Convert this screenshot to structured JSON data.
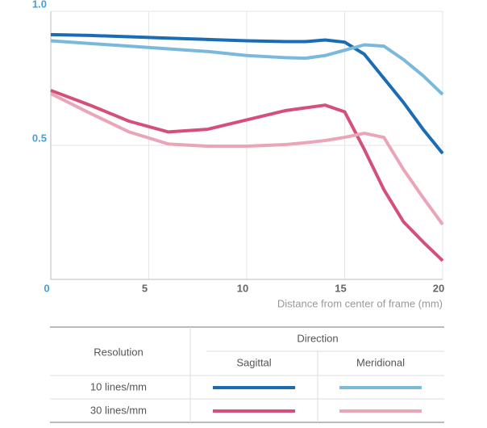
{
  "chart_data": {
    "type": "line",
    "x": [
      0,
      2,
      4,
      6,
      8,
      10,
      12,
      13,
      14,
      15,
      16,
      17,
      18,
      19,
      20
    ],
    "series": [
      {
        "color": "#1a6db5",
        "values": [
          0.913,
          0.91,
          0.905,
          0.9,
          0.895,
          0.89,
          0.887,
          0.887,
          0.893,
          0.885,
          0.84,
          0.75,
          0.66,
          0.56,
          0.47
        ]
      },
      {
        "color": "#7ab8dc",
        "values": [
          0.89,
          0.88,
          0.87,
          0.86,
          0.85,
          0.835,
          0.827,
          0.825,
          0.835,
          0.855,
          0.875,
          0.87,
          0.82,
          0.76,
          0.69
        ]
      },
      {
        "color": "#d4507a",
        "values": [
          0.705,
          0.65,
          0.59,
          0.55,
          0.56,
          0.595,
          0.63,
          0.64,
          0.65,
          0.625,
          0.485,
          0.335,
          0.215,
          0.14,
          0.07
        ]
      },
      {
        "color": "#eaa5b8",
        "values": [
          0.693,
          0.62,
          0.55,
          0.505,
          0.497,
          0.497,
          0.503,
          0.51,
          0.518,
          0.53,
          0.545,
          0.53,
          0.41,
          0.305,
          0.205
        ]
      }
    ],
    "xlim": [
      0,
      20
    ],
    "xticks": [
      0,
      5,
      10,
      15,
      20
    ],
    "ylim": [
      0,
      1
    ],
    "yticks": [
      0.5,
      {
        "value": 1,
        "label": "1.0"
      }
    ],
    "xlabel": "Distance from center of frame (mm)",
    "grid": true,
    "legend_table": {
      "row_header": "Resolution",
      "column_header": "Direction",
      "columns": [
        "Sagittal",
        "Meridional"
      ],
      "rows": [
        "10 lines/mm",
        "30 lines/mm"
      ]
    }
  }
}
